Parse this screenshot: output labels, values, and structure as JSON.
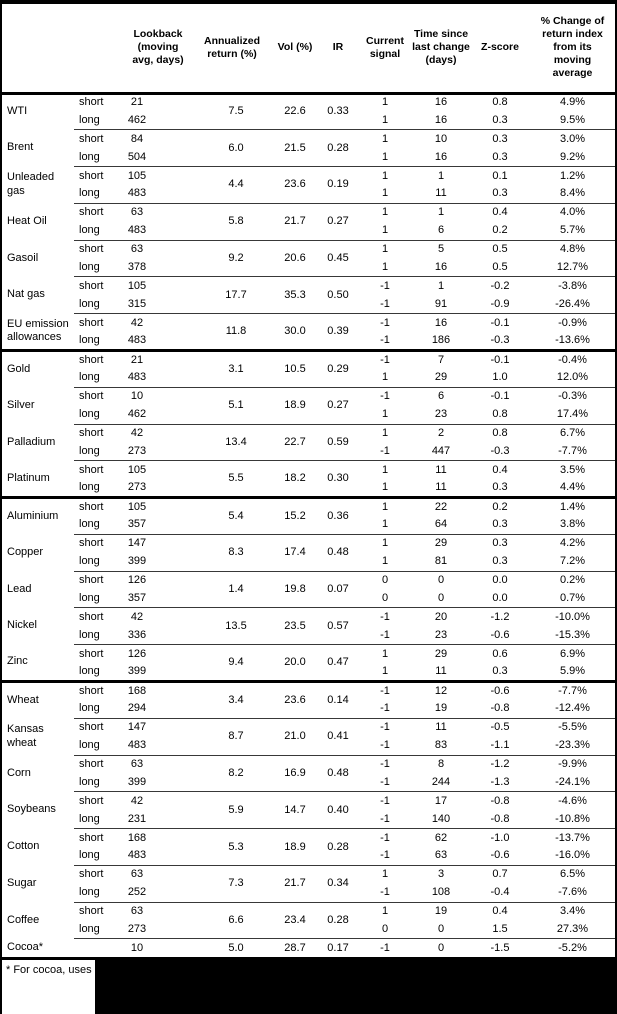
{
  "table": {
    "headers": [
      "",
      "",
      "Lookback\n(moving\navg, days)",
      "Annualized\nreturn (%)",
      "Vol (%)",
      "IR",
      "Current\nsignal",
      "Time since\nlast change\n(days)",
      "Z-score",
      "% Change of\nreturn index\nfrom its\nmoving\naverage"
    ],
    "sections": [
      {
        "name": "energy",
        "commodities": [
          {
            "name": "WTI",
            "ann_return": "7.5",
            "vol": "22.6",
            "ir": "0.33",
            "rows": [
              {
                "leg": "short",
                "lookback": "21",
                "signal": "1",
                "time_since": "16",
                "zscore": "0.8",
                "change": "4.9%"
              },
              {
                "leg": "long",
                "lookback": "462",
                "signal": "1",
                "time_since": "16",
                "zscore": "0.3",
                "change": "9.5%"
              }
            ]
          },
          {
            "name": "Brent",
            "ann_return": "6.0",
            "vol": "21.5",
            "ir": "0.28",
            "rows": [
              {
                "leg": "short",
                "lookback": "84",
                "signal": "1",
                "time_since": "10",
                "zscore": "0.3",
                "change": "3.0%"
              },
              {
                "leg": "long",
                "lookback": "504",
                "signal": "1",
                "time_since": "16",
                "zscore": "0.3",
                "change": "9.2%"
              }
            ]
          },
          {
            "name": "Unleaded gas",
            "ann_return": "4.4",
            "vol": "23.6",
            "ir": "0.19",
            "rows": [
              {
                "leg": "short",
                "lookback": "105",
                "signal": "1",
                "time_since": "1",
                "zscore": "0.1",
                "change": "1.2%"
              },
              {
                "leg": "long",
                "lookback": "483",
                "signal": "1",
                "time_since": "11",
                "zscore": "0.3",
                "change": "8.4%"
              }
            ]
          },
          {
            "name": "Heat Oil",
            "ann_return": "5.8",
            "vol": "21.7",
            "ir": "0.27",
            "rows": [
              {
                "leg": "short",
                "lookback": "63",
                "signal": "1",
                "time_since": "1",
                "zscore": "0.4",
                "change": "4.0%"
              },
              {
                "leg": "long",
                "lookback": "483",
                "signal": "1",
                "time_since": "6",
                "zscore": "0.2",
                "change": "5.7%"
              }
            ]
          },
          {
            "name": "Gasoil",
            "ann_return": "9.2",
            "vol": "20.6",
            "ir": "0.45",
            "rows": [
              {
                "leg": "short",
                "lookback": "63",
                "signal": "1",
                "time_since": "5",
                "zscore": "0.5",
                "change": "4.8%"
              },
              {
                "leg": "long",
                "lookback": "378",
                "signal": "1",
                "time_since": "16",
                "zscore": "0.5",
                "change": "12.7%"
              }
            ]
          },
          {
            "name": "Nat gas",
            "ann_return": "17.7",
            "vol": "35.3",
            "ir": "0.50",
            "rows": [
              {
                "leg": "short",
                "lookback": "105",
                "signal": "-1",
                "time_since": "1",
                "zscore": "-0.2",
                "change": "-3.8%"
              },
              {
                "leg": "long",
                "lookback": "315",
                "signal": "-1",
                "time_since": "91",
                "zscore": "-0.9",
                "change": "-26.4%"
              }
            ]
          },
          {
            "name": "EU emission allowances",
            "ann_return": "11.8",
            "vol": "30.0",
            "ir": "0.39",
            "rows": [
              {
                "leg": "short",
                "lookback": "42",
                "signal": "-1",
                "time_since": "16",
                "zscore": "-0.1",
                "change": "-0.9%"
              },
              {
                "leg": "long",
                "lookback": "483",
                "signal": "-1",
                "time_since": "186",
                "zscore": "-0.3",
                "change": "-13.6%"
              }
            ]
          }
        ]
      },
      {
        "name": "precious-metals",
        "commodities": [
          {
            "name": "Gold",
            "ann_return": "3.1",
            "vol": "10.5",
            "ir": "0.29",
            "rows": [
              {
                "leg": "short",
                "lookback": "21",
                "signal": "-1",
                "time_since": "7",
                "zscore": "-0.1",
                "change": "-0.4%"
              },
              {
                "leg": "long",
                "lookback": "483",
                "signal": "1",
                "time_since": "29",
                "zscore": "1.0",
                "change": "12.0%"
              }
            ]
          },
          {
            "name": "Silver",
            "ann_return": "5.1",
            "vol": "18.9",
            "ir": "0.27",
            "rows": [
              {
                "leg": "short",
                "lookback": "10",
                "signal": "-1",
                "time_since": "6",
                "zscore": "-0.1",
                "change": "-0.3%"
              },
              {
                "leg": "long",
                "lookback": "462",
                "signal": "1",
                "time_since": "23",
                "zscore": "0.8",
                "change": "17.4%"
              }
            ]
          },
          {
            "name": "Palladium",
            "ann_return": "13.4",
            "vol": "22.7",
            "ir": "0.59",
            "rows": [
              {
                "leg": "short",
                "lookback": "42",
                "signal": "1",
                "time_since": "2",
                "zscore": "0.8",
                "change": "6.7%"
              },
              {
                "leg": "long",
                "lookback": "273",
                "signal": "-1",
                "time_since": "447",
                "zscore": "-0.3",
                "change": "-7.7%"
              }
            ]
          },
          {
            "name": "Platinum",
            "ann_return": "5.5",
            "vol": "18.2",
            "ir": "0.30",
            "rows": [
              {
                "leg": "short",
                "lookback": "105",
                "signal": "1",
                "time_since": "11",
                "zscore": "0.4",
                "change": "3.5%"
              },
              {
                "leg": "long",
                "lookback": "273",
                "signal": "1",
                "time_since": "11",
                "zscore": "0.3",
                "change": "4.4%"
              }
            ]
          }
        ]
      },
      {
        "name": "base-metals",
        "commodities": [
          {
            "name": "Aluminium",
            "ann_return": "5.4",
            "vol": "15.2",
            "ir": "0.36",
            "rows": [
              {
                "leg": "short",
                "lookback": "105",
                "signal": "1",
                "time_since": "22",
                "zscore": "0.2",
                "change": "1.4%"
              },
              {
                "leg": "long",
                "lookback": "357",
                "signal": "1",
                "time_since": "64",
                "zscore": "0.3",
                "change": "3.8%"
              }
            ]
          },
          {
            "name": "Copper",
            "ann_return": "8.3",
            "vol": "17.4",
            "ir": "0.48",
            "rows": [
              {
                "leg": "short",
                "lookback": "147",
                "signal": "1",
                "time_since": "29",
                "zscore": "0.3",
                "change": "4.2%"
              },
              {
                "leg": "long",
                "lookback": "399",
                "signal": "1",
                "time_since": "81",
                "zscore": "0.3",
                "change": "7.2%"
              }
            ]
          },
          {
            "name": "Lead",
            "ann_return": "1.4",
            "vol": "19.8",
            "ir": "0.07",
            "rows": [
              {
                "leg": "short",
                "lookback": "126",
                "signal": "0",
                "time_since": "0",
                "zscore": "0.0",
                "change": "0.2%"
              },
              {
                "leg": "long",
                "lookback": "357",
                "signal": "0",
                "time_since": "0",
                "zscore": "0.0",
                "change": "0.7%"
              }
            ]
          },
          {
            "name": "Nickel",
            "ann_return": "13.5",
            "vol": "23.5",
            "ir": "0.57",
            "rows": [
              {
                "leg": "short",
                "lookback": "42",
                "signal": "-1",
                "time_since": "20",
                "zscore": "-1.2",
                "change": "-10.0%"
              },
              {
                "leg": "long",
                "lookback": "336",
                "signal": "-1",
                "time_since": "23",
                "zscore": "-0.6",
                "change": "-15.3%"
              }
            ]
          },
          {
            "name": "Zinc",
            "ann_return": "9.4",
            "vol": "20.0",
            "ir": "0.47",
            "rows": [
              {
                "leg": "short",
                "lookback": "126",
                "signal": "1",
                "time_since": "29",
                "zscore": "0.6",
                "change": "6.9%"
              },
              {
                "leg": "long",
                "lookback": "399",
                "signal": "1",
                "time_since": "11",
                "zscore": "0.3",
                "change": "5.9%"
              }
            ]
          }
        ]
      },
      {
        "name": "agriculture",
        "commodities": [
          {
            "name": "Wheat",
            "ann_return": "3.4",
            "vol": "23.6",
            "ir": "0.14",
            "rows": [
              {
                "leg": "short",
                "lookback": "168",
                "signal": "-1",
                "time_since": "12",
                "zscore": "-0.6",
                "change": "-7.7%"
              },
              {
                "leg": "long",
                "lookback": "294",
                "signal": "-1",
                "time_since": "19",
                "zscore": "-0.8",
                "change": "-12.4%"
              }
            ]
          },
          {
            "name": "Kansas wheat",
            "ann_return": "8.7",
            "vol": "21.0",
            "ir": "0.41",
            "rows": [
              {
                "leg": "short",
                "lookback": "147",
                "signal": "-1",
                "time_since": "11",
                "zscore": "-0.5",
                "change": "-5.5%"
              },
              {
                "leg": "long",
                "lookback": "483",
                "signal": "-1",
                "time_since": "83",
                "zscore": "-1.1",
                "change": "-23.3%"
              }
            ]
          },
          {
            "name": "Corn",
            "ann_return": "8.2",
            "vol": "16.9",
            "ir": "0.48",
            "rows": [
              {
                "leg": "short",
                "lookback": "63",
                "signal": "-1",
                "time_since": "8",
                "zscore": "-1.2",
                "change": "-9.9%"
              },
              {
                "leg": "long",
                "lookback": "399",
                "signal": "-1",
                "time_since": "244",
                "zscore": "-1.3",
                "change": "-24.1%"
              }
            ]
          },
          {
            "name": "Soybeans",
            "ann_return": "5.9",
            "vol": "14.7",
            "ir": "0.40",
            "rows": [
              {
                "leg": "short",
                "lookback": "42",
                "signal": "-1",
                "time_since": "17",
                "zscore": "-0.8",
                "change": "-4.6%"
              },
              {
                "leg": "long",
                "lookback": "231",
                "signal": "-1",
                "time_since": "140",
                "zscore": "-0.8",
                "change": "-10.8%"
              }
            ]
          },
          {
            "name": "Cotton",
            "ann_return": "5.3",
            "vol": "18.9",
            "ir": "0.28",
            "rows": [
              {
                "leg": "short",
                "lookback": "168",
                "signal": "-1",
                "time_since": "62",
                "zscore": "-1.0",
                "change": "-13.7%"
              },
              {
                "leg": "long",
                "lookback": "483",
                "signal": "-1",
                "time_since": "63",
                "zscore": "-0.6",
                "change": "-16.0%"
              }
            ]
          },
          {
            "name": "Sugar",
            "ann_return": "7.3",
            "vol": "21.7",
            "ir": "0.34",
            "rows": [
              {
                "leg": "short",
                "lookback": "63",
                "signal": "1",
                "time_since": "3",
                "zscore": "0.7",
                "change": "6.5%"
              },
              {
                "leg": "long",
                "lookback": "252",
                "signal": "-1",
                "time_since": "108",
                "zscore": "-0.4",
                "change": "-7.6%"
              }
            ]
          },
          {
            "name": "Coffee",
            "ann_return": "6.6",
            "vol": "23.4",
            "ir": "0.28",
            "rows": [
              {
                "leg": "short",
                "lookback": "63",
                "signal": "1",
                "time_since": "19",
                "zscore": "0.4",
                "change": "3.4%"
              },
              {
                "leg": "long",
                "lookback": "273",
                "signal": "0",
                "time_since": "0",
                "zscore": "1.5",
                "change": "27.3%"
              }
            ]
          },
          {
            "name": "Cocoa*",
            "ann_return": "5.0",
            "vol": "28.7",
            "ir": "0.17",
            "rows": [
              {
                "leg": "",
                "lookback": "10",
                "signal": "-1",
                "time_since": "0",
                "zscore": "-1.5",
                "change": "-5.2%"
              }
            ]
          }
        ]
      }
    ],
    "footnote": "* For cocoa, uses o"
  },
  "colors": {
    "text": "#000000",
    "line_thick": "#000000",
    "line_thin": "#383838",
    "background": "#ffffff",
    "redaction_bar": "#000000"
  }
}
